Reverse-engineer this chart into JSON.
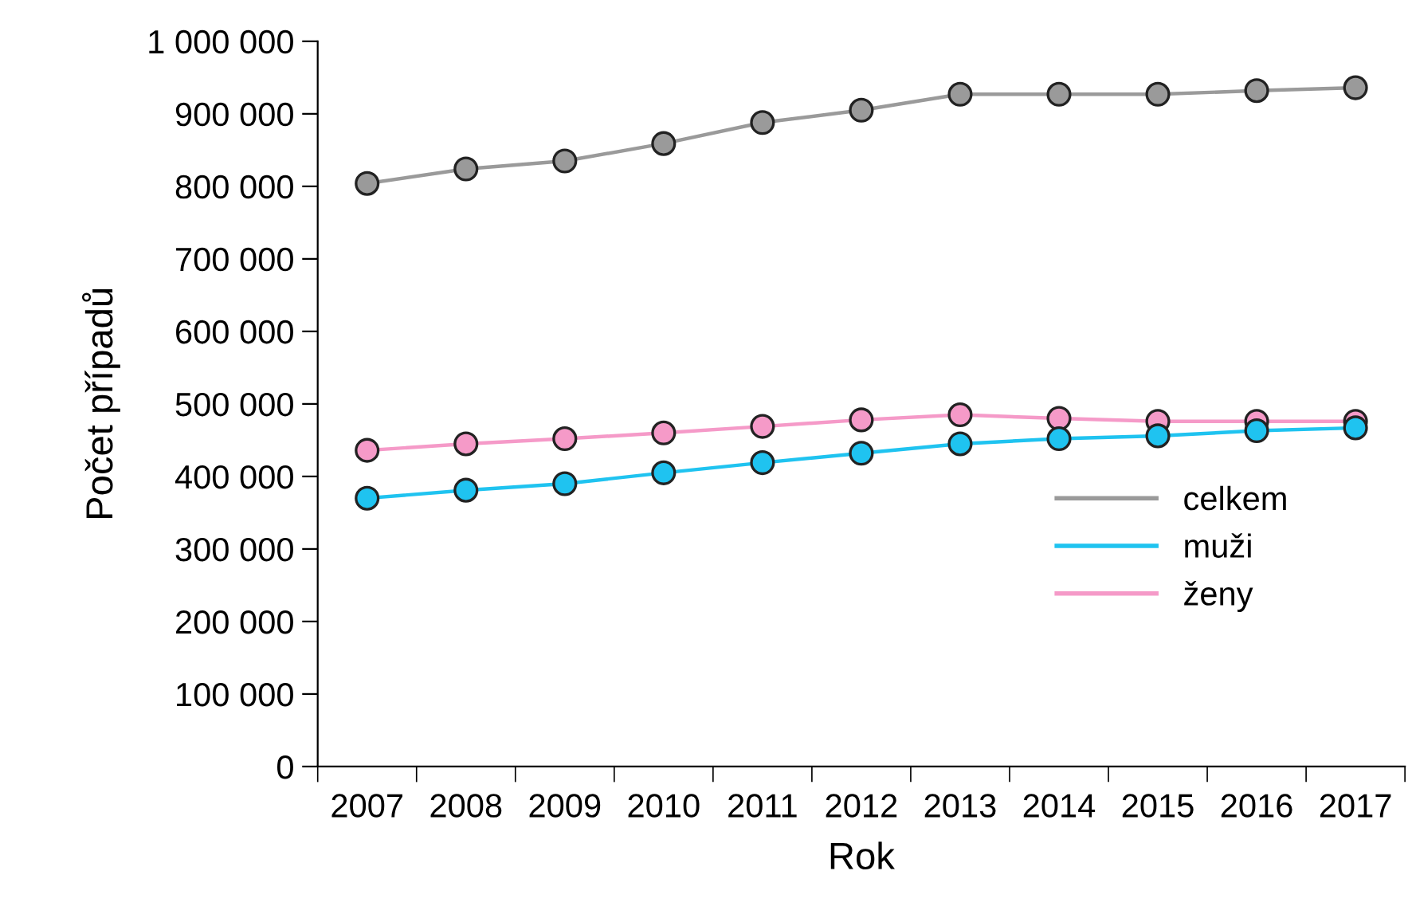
{
  "chart_data": {
    "type": "line",
    "xlabel": "Rok",
    "ylabel": "Počet případů",
    "categories": [
      "2007",
      "2008",
      "2009",
      "2010",
      "2011",
      "2012",
      "2013",
      "2014",
      "2015",
      "2016",
      "2017"
    ],
    "series": [
      {
        "name": "celkem",
        "color": "#9a9a9a",
        "values": [
          804000,
          824000,
          835000,
          859000,
          888000,
          905000,
          927000,
          927000,
          927000,
          932000,
          936000
        ]
      },
      {
        "name": "muži",
        "color": "#1fc3f0",
        "values": [
          370000,
          381000,
          390000,
          405000,
          419000,
          432000,
          445000,
          452000,
          456000,
          463000,
          467000
        ]
      },
      {
        "name": "ženy",
        "color": "#f59ac8",
        "values": [
          436000,
          445000,
          452000,
          460000,
          469000,
          478000,
          485000,
          480000,
          476000,
          476000,
          476000
        ]
      }
    ],
    "ylim": [
      0,
      1000000
    ],
    "yticks": [
      0,
      {
        "value": 100000,
        "label": "100 000"
      },
      {
        "value": 200000,
        "label": "200 000"
      },
      {
        "value": 300000,
        "label": "300 000"
      },
      {
        "value": 400000,
        "label": "400 000"
      },
      {
        "value": 500000,
        "label": "500 000"
      },
      {
        "value": 600000,
        "label": "600 000"
      },
      {
        "value": 700000,
        "label": "700 000"
      },
      {
        "value": 800000,
        "label": "800 000"
      },
      {
        "value": 900000,
        "label": "900 000"
      },
      {
        "value": 1000000,
        "label": "1 000 000"
      }
    ],
    "grid": false,
    "legend": "center right",
    "marker": "circle",
    "line_style": "solid"
  }
}
